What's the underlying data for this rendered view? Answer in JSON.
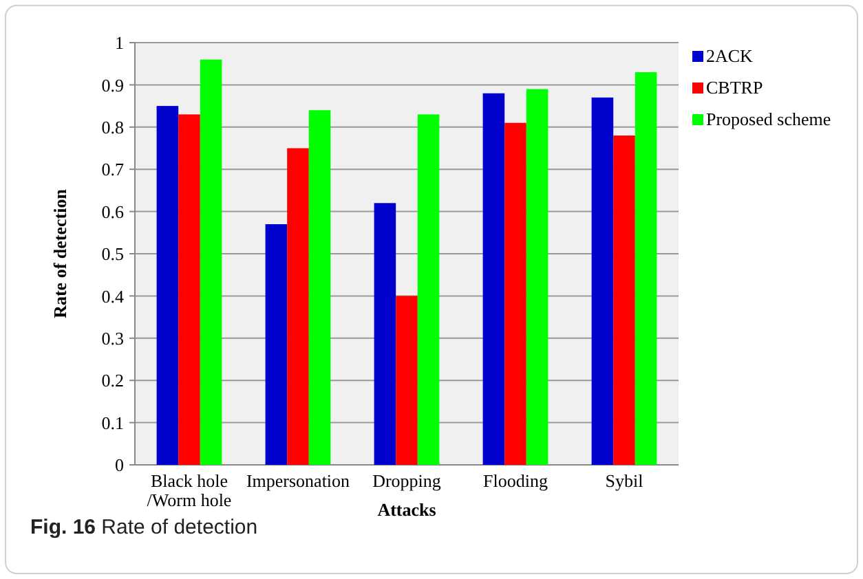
{
  "chart_data": {
    "type": "bar",
    "xlabel": "Attacks",
    "ylabel": "Rate of detection",
    "categories": [
      "Black hole /Worm hole",
      "Impersonation",
      "Dropping",
      "Flooding",
      "Sybil"
    ],
    "series": [
      {
        "name": "2ACK",
        "color": "#0000cc",
        "values": [
          0.85,
          0.57,
          0.62,
          0.88,
          0.87
        ]
      },
      {
        "name": "CBTRP",
        "color": "#ff0000",
        "values": [
          0.83,
          0.75,
          0.4,
          0.81,
          0.78
        ]
      },
      {
        "name": "Proposed scheme",
        "color": "#00ff00",
        "values": [
          0.96,
          0.84,
          0.83,
          0.89,
          0.93
        ]
      }
    ],
    "ylim": [
      0,
      1
    ],
    "yticks": [
      0,
      0.1,
      0.2,
      0.3,
      0.4,
      0.5,
      0.6,
      0.7,
      0.8,
      0.9,
      1
    ],
    "grid": "y",
    "legend": "right",
    "annotations": [
      "Fig. 16 Rate of detection"
    ]
  }
}
